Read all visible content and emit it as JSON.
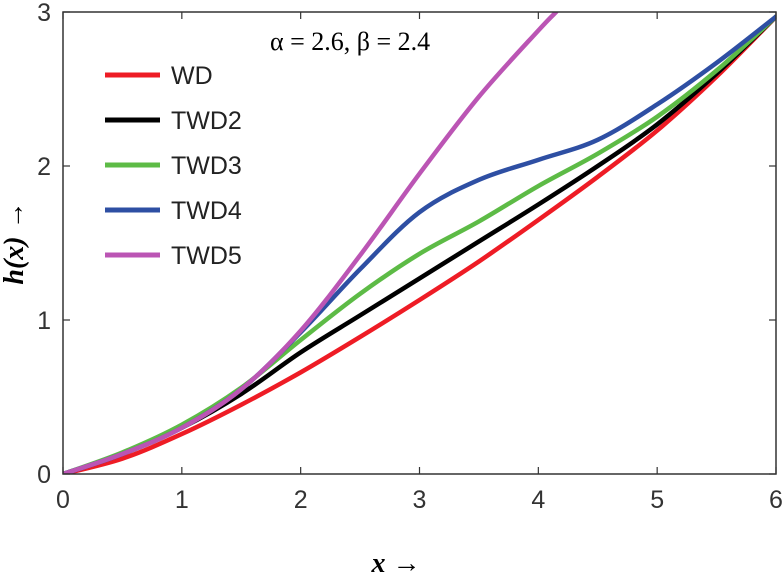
{
  "chart_data": {
    "type": "line",
    "title": "",
    "annotation": "α = 2.6, β = 2.4",
    "xlabel": "x →",
    "ylabel": "h(x) →",
    "xlim": [
      0,
      6
    ],
    "ylim": [
      0,
      3
    ],
    "xticks": [
      "0",
      "1",
      "2",
      "3",
      "4",
      "5",
      "6"
    ],
    "yticks": [
      "0",
      "1",
      "2",
      "3"
    ],
    "grid": false,
    "legend_position": "top-left",
    "x": [
      0,
      0.5,
      1,
      1.5,
      2,
      2.5,
      3,
      3.5,
      4,
      4.5,
      5,
      5.5,
      6
    ],
    "series": [
      {
        "name": "WD",
        "color": "#ee1c25",
        "values": [
          0,
          0.1,
          0.26,
          0.45,
          0.66,
          0.89,
          1.13,
          1.38,
          1.65,
          1.93,
          2.23,
          2.58,
          2.97
        ]
      },
      {
        "name": "TWD2",
        "color": "#000000",
        "values": [
          0,
          0.13,
          0.3,
          0.52,
          0.79,
          1.03,
          1.27,
          1.51,
          1.75,
          2.0,
          2.27,
          2.6,
          2.97
        ]
      },
      {
        "name": "TWD3",
        "color": "#5dbb46",
        "values": [
          0,
          0.14,
          0.32,
          0.56,
          0.87,
          1.17,
          1.43,
          1.64,
          1.87,
          2.08,
          2.32,
          2.62,
          2.97
        ]
      },
      {
        "name": "TWD4",
        "color": "#2e4fa3",
        "values": [
          0,
          0.13,
          0.3,
          0.55,
          0.92,
          1.33,
          1.7,
          1.91,
          2.04,
          2.17,
          2.4,
          2.67,
          2.97
        ]
      },
      {
        "name": "TWD5",
        "color": "#bb55b4",
        "values": [
          0,
          0.13,
          0.3,
          0.55,
          0.93,
          1.42,
          1.95,
          2.45,
          2.88,
          null,
          null,
          null,
          null
        ],
        "clip_end": [
          4.15,
          3.0
        ]
      }
    ]
  }
}
